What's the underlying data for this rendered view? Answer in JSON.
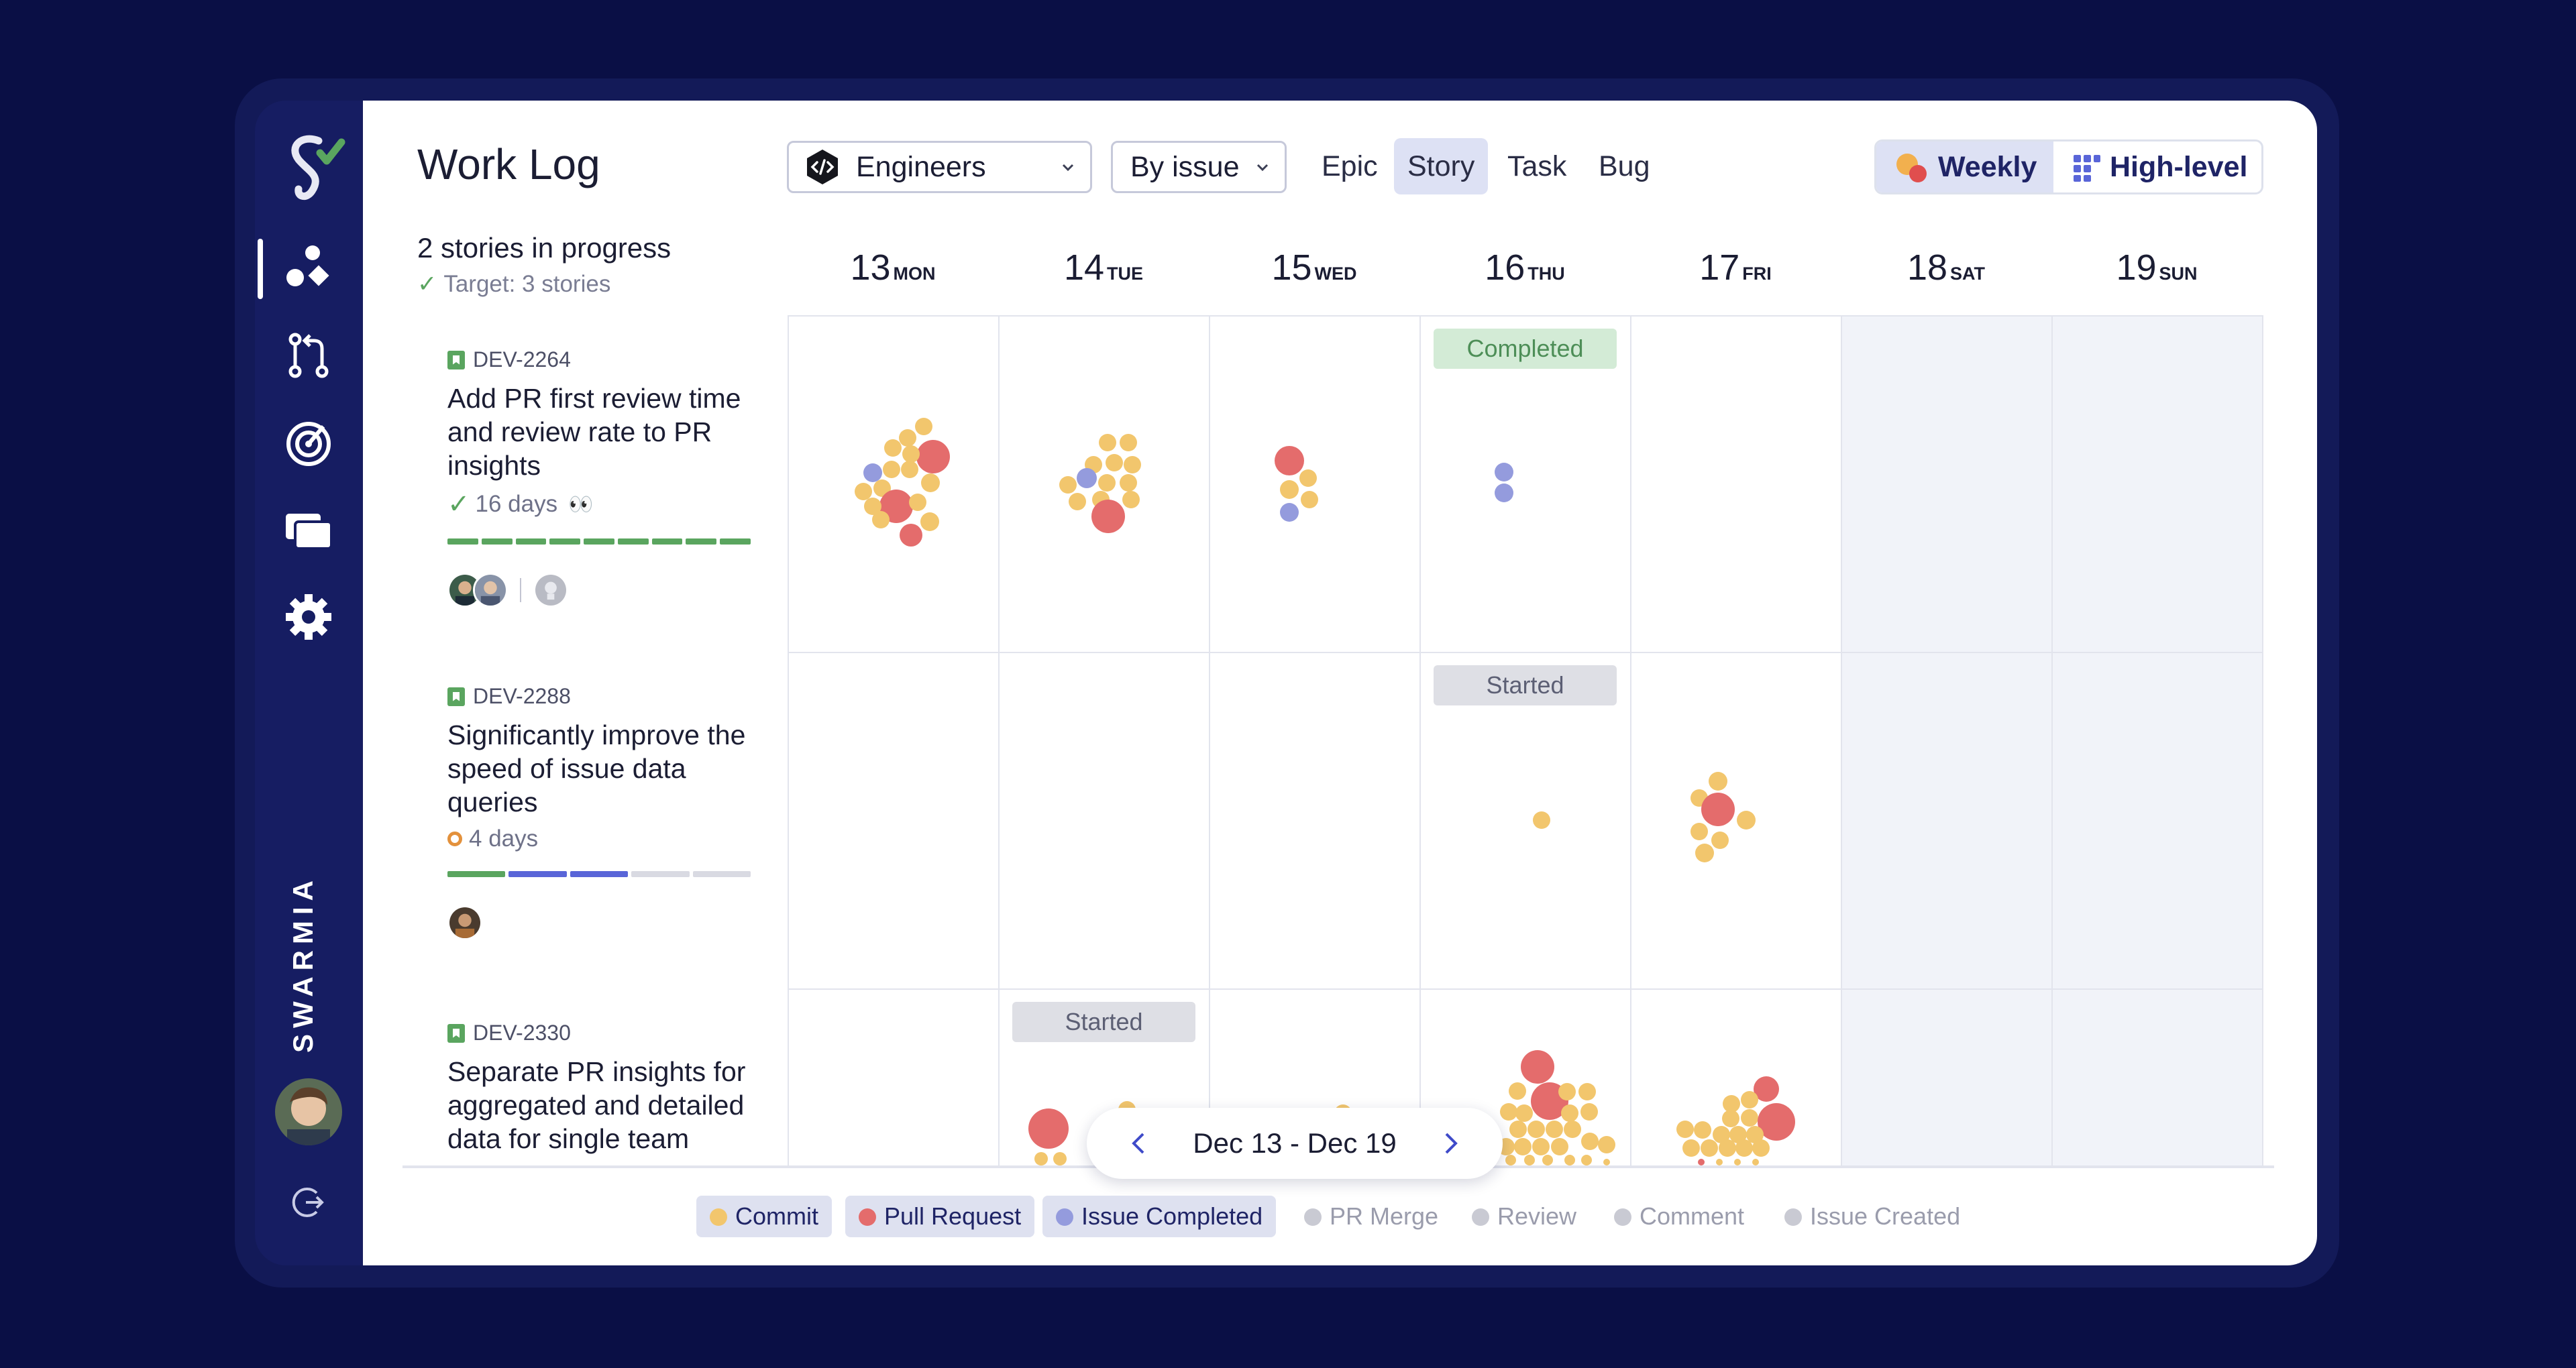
{
  "app": {
    "brand": "SWARMIA",
    "title": "Work Log"
  },
  "colors": {
    "background": "#0a0f45",
    "commit": "#f2c66d",
    "pull_request": "#e46c6c",
    "issue_completed": "#949bdd",
    "done": "#5aa55f",
    "in_progress": "#5965d8",
    "todo": "#d9dae2"
  },
  "sidebar": {
    "icons": [
      "logo-icon",
      "work-log-icon",
      "pull-request-icon",
      "radar-icon",
      "cards-icon",
      "settings-icon",
      "logout-icon"
    ]
  },
  "toolbar": {
    "team_dropdown": "Engineers",
    "group_dropdown": "By issue",
    "filters": [
      "Epic",
      "Story",
      "Task",
      "Bug"
    ],
    "active_filter": "Story",
    "view_weekly": "Weekly",
    "view_highlevel": "High-level"
  },
  "summary": {
    "in_progress": "2 stories in progress",
    "target": "Target: 3 stories"
  },
  "days": [
    {
      "num": "13",
      "name": "MON"
    },
    {
      "num": "14",
      "name": "TUE"
    },
    {
      "num": "15",
      "name": "WED"
    },
    {
      "num": "16",
      "name": "THU"
    },
    {
      "num": "17",
      "name": "FRI"
    },
    {
      "num": "18",
      "name": "SAT"
    },
    {
      "num": "19",
      "name": "SUN"
    }
  ],
  "issues": [
    {
      "key": "DEV-2264",
      "title": "Add PR first review time and review rate to PR insights",
      "duration": "16 days",
      "status": "done",
      "emoji": "👀",
      "progress": [
        "done",
        "done",
        "done",
        "done",
        "done",
        "done",
        "done",
        "done",
        "done"
      ]
    },
    {
      "key": "DEV-2288",
      "title": "Significantly improve the speed of issue data queries",
      "duration": "4 days",
      "status": "in-progress",
      "progress": [
        "done",
        "done",
        "progress",
        "progress",
        "todo",
        "todo"
      ]
    },
    {
      "key": "DEV-2330",
      "title": "Separate PR insights for aggregated and detailed data for single team"
    }
  ],
  "badges": {
    "completed": "Completed",
    "started": "Started"
  },
  "date_range": "Dec 13 - Dec 19",
  "legend": [
    {
      "label": "Commit",
      "active": true
    },
    {
      "label": "Pull Request",
      "active": true
    },
    {
      "label": "Issue Completed",
      "active": true
    },
    {
      "label": "PR Merge",
      "active": false
    },
    {
      "label": "Review",
      "active": false
    },
    {
      "label": "Comment",
      "active": false
    },
    {
      "label": "Issue Created",
      "active": false
    }
  ]
}
